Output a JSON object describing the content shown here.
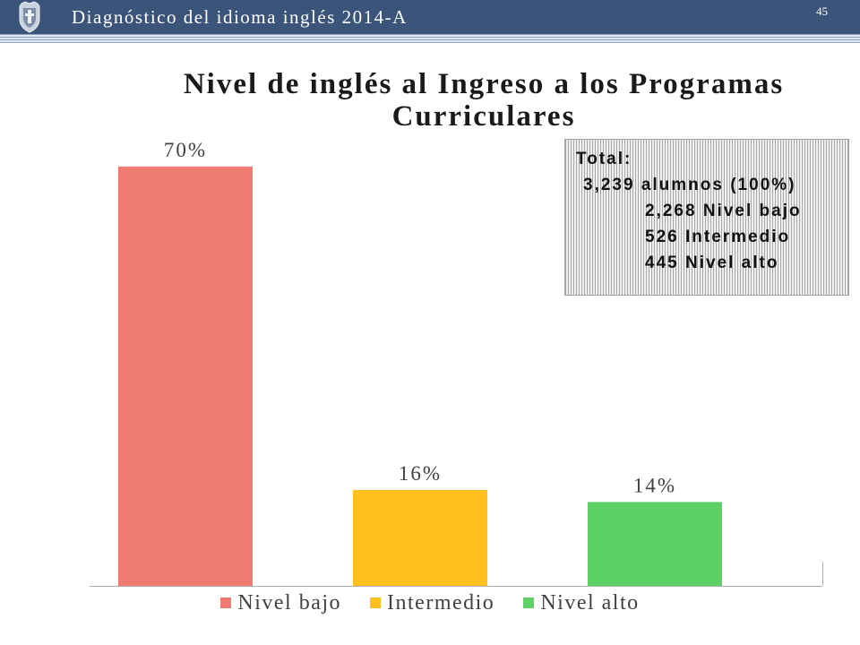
{
  "theme": {
    "header_bg": "#3b5479",
    "header_text": "#ffffff"
  },
  "header": {
    "logo_icon": "university-seal-icon",
    "title": "Diagnóstico del idioma inglés 2014-A",
    "page_number": "45"
  },
  "chart_data": {
    "type": "bar",
    "title": "Nivel de inglés al Ingreso a los Programas Curriculares",
    "series": [
      {
        "name": "Nivel bajo",
        "values": [
          70
        ],
        "label": "70%",
        "color": "#ef7a72"
      },
      {
        "name": "Intermedio",
        "values": [
          16
        ],
        "label": "16%",
        "color": "#ffbf1f"
      },
      {
        "name": "Nivel alto",
        "values": [
          14
        ],
        "label": "14%",
        "color": "#5dd066"
      }
    ],
    "legend": "bottom",
    "grid": false
  },
  "summary_box": {
    "title": "Total:",
    "total": "3,239 alumnos (100%)",
    "breakdown": [
      "2,268 Nivel bajo",
      "526 Intermedio",
      "445 Nivel alto"
    ]
  }
}
